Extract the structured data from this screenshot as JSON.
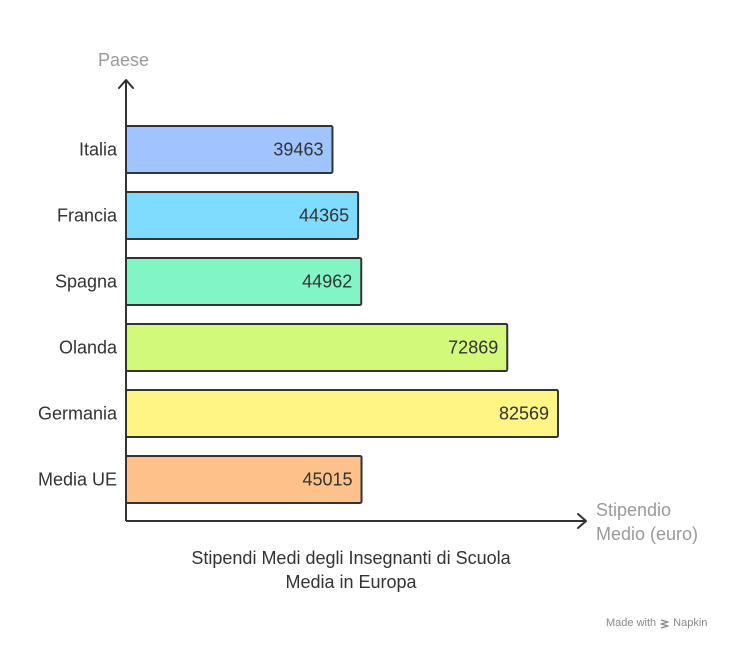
{
  "chart_data": {
    "type": "bar",
    "orientation": "horizontal",
    "caption": "Stipendi Medi degli Insegnanti di Scuola\nMedia in Europa",
    "ylabel": "Paese",
    "xlabel": "Stipendio\nMedio (euro)",
    "grid": false,
    "legend": "none",
    "categories": [
      "Italia",
      "Francia",
      "Spagna",
      "Olanda",
      "Germania",
      "Media UE"
    ],
    "values": [
      39463,
      44365,
      44962,
      72869,
      82569,
      45015
    ],
    "colors": [
      "#a0c4ff",
      "#80dcff",
      "#82f5c5",
      "#d2f97a",
      "#fff584",
      "#ffc18a"
    ]
  },
  "watermark": {
    "made_with": "Made with",
    "brand": "Napkin"
  }
}
